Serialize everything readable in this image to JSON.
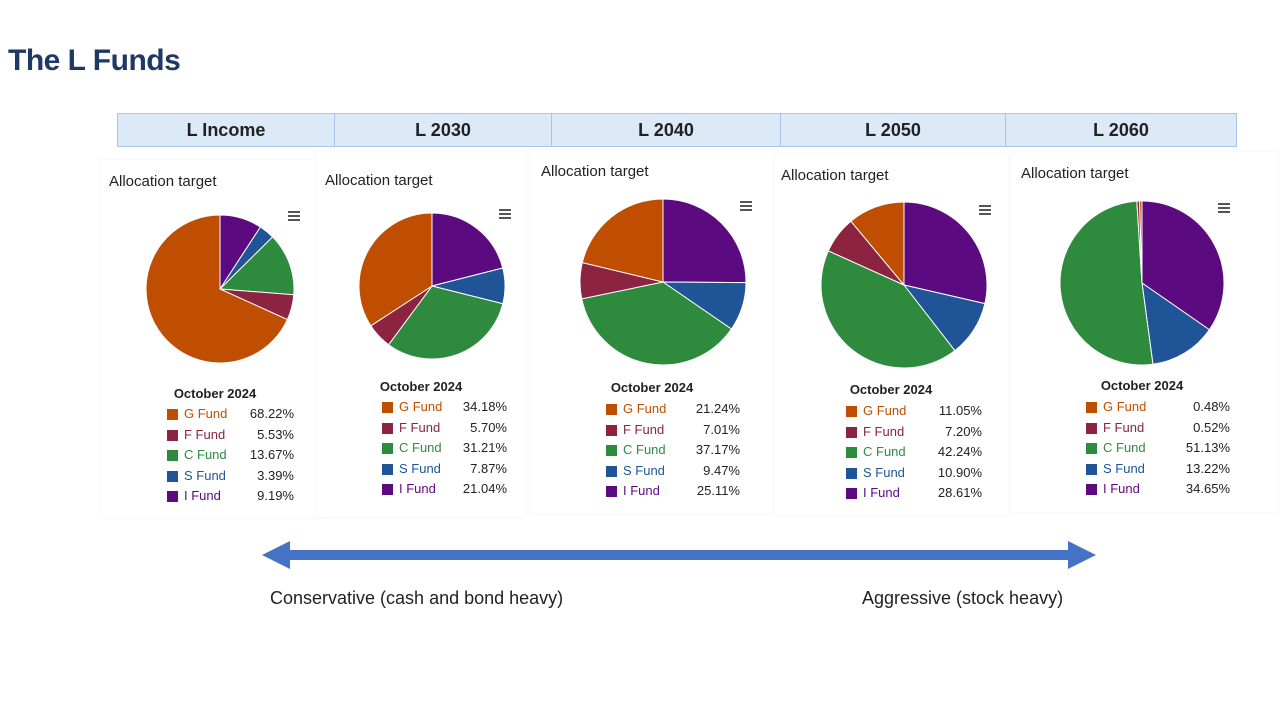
{
  "page_title": "The L Funds",
  "table_headers": [
    "L Income",
    "L 2030",
    "L 2040",
    "L 2050",
    "L 2060"
  ],
  "scale": {
    "left_label": "Conservative (cash and bond heavy)",
    "right_label": "Aggressive (stock heavy)"
  },
  "chart_data": [
    {
      "type": "pie",
      "name": "L Income",
      "title": "Allocation target",
      "date_label": "October 2024",
      "legend": [
        "G Fund",
        "F Fund",
        "C Fund",
        "S Fund",
        "I Fund"
      ],
      "values": [
        68.22,
        5.53,
        13.67,
        3.39,
        9.19
      ],
      "value_labels": [
        "68.22%",
        "5.53%",
        "13.67%",
        "3.39%",
        "9.19%"
      ]
    },
    {
      "type": "pie",
      "name": "L 2030",
      "title": "Allocation target",
      "date_label": "October 2024",
      "legend": [
        "G Fund",
        "F Fund",
        "C Fund",
        "S Fund",
        "I Fund"
      ],
      "values": [
        34.18,
        5.7,
        31.21,
        7.87,
        21.04
      ],
      "value_labels": [
        "34.18%",
        "5.70%",
        "31.21%",
        "7.87%",
        "21.04%"
      ]
    },
    {
      "type": "pie",
      "name": "L 2040",
      "title": "Allocation target",
      "date_label": "October 2024",
      "legend": [
        "G Fund",
        "F Fund",
        "C Fund",
        "S Fund",
        "I Fund"
      ],
      "values": [
        21.24,
        7.01,
        37.17,
        9.47,
        25.11
      ],
      "value_labels": [
        "21.24%",
        "7.01%",
        "37.17%",
        "9.47%",
        "25.11%"
      ]
    },
    {
      "type": "pie",
      "name": "L 2050",
      "title": "Allocation target",
      "date_label": "October 2024",
      "legend": [
        "G Fund",
        "F Fund",
        "C Fund",
        "S Fund",
        "I Fund"
      ],
      "values": [
        11.05,
        7.2,
        42.24,
        10.9,
        28.61
      ],
      "value_labels": [
        "11.05%",
        "7.20%",
        "42.24%",
        "10.90%",
        "28.61%"
      ]
    },
    {
      "type": "pie",
      "name": "L 2060",
      "title": "Allocation target",
      "date_label": "October 2024",
      "legend": [
        "G Fund",
        "F Fund",
        "C Fund",
        "S Fund",
        "I Fund"
      ],
      "values": [
        0.48,
        0.52,
        51.13,
        13.22,
        34.65
      ],
      "value_labels": [
        "0.48%",
        "0.52%",
        "51.13%",
        "13.22%",
        "34.65%"
      ]
    }
  ],
  "colors": {
    "G Fund": "#c04e00",
    "F Fund": "#8c2340",
    "C Fund": "#2e8b3e",
    "S Fund": "#1f5596",
    "I Fund": "#5c0a80",
    "header_bg": "#dce9f7",
    "title": "#1f3864",
    "arrow": "#4472c4"
  }
}
